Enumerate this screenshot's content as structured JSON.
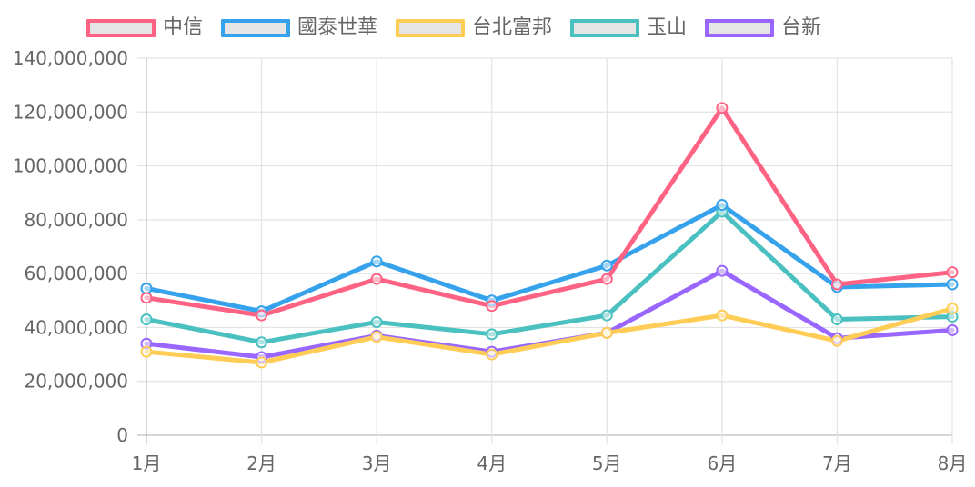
{
  "chart_data": {
    "type": "line",
    "categories": [
      "1月",
      "2月",
      "3月",
      "4月",
      "5月",
      "6月",
      "7月",
      "8月"
    ],
    "y_ticks": [
      "0",
      "20,000,000",
      "40,000,000",
      "60,000,000",
      "80,000,000",
      "100,000,000",
      "120,000,000",
      "140,000,000"
    ],
    "ylim": [
      0,
      140000000
    ],
    "grid": true,
    "legend_position": "top",
    "series": [
      {
        "name": "中信",
        "color": "#ff6384",
        "values": [
          51000000,
          44500000,
          58000000,
          48000000,
          58000000,
          121500000,
          56000000,
          60500000
        ]
      },
      {
        "name": "國泰世華",
        "color": "#36a2eb",
        "values": [
          54500000,
          46000000,
          64500000,
          50000000,
          63000000,
          85500000,
          55000000,
          56000000
        ]
      },
      {
        "name": "台北富邦",
        "color": "#ffcd56",
        "values": [
          31000000,
          27000000,
          36500000,
          30000000,
          38000000,
          44500000,
          35000000,
          47000000
        ]
      },
      {
        "name": "玉山",
        "color": "#4bc0c0",
        "values": [
          43000000,
          34500000,
          42000000,
          37500000,
          44500000,
          83000000,
          43000000,
          44000000
        ]
      },
      {
        "name": "台新",
        "color": "#9966ff",
        "values": [
          34000000,
          29000000,
          37000000,
          31000000,
          38000000,
          61000000,
          36000000,
          39000000
        ]
      }
    ]
  }
}
